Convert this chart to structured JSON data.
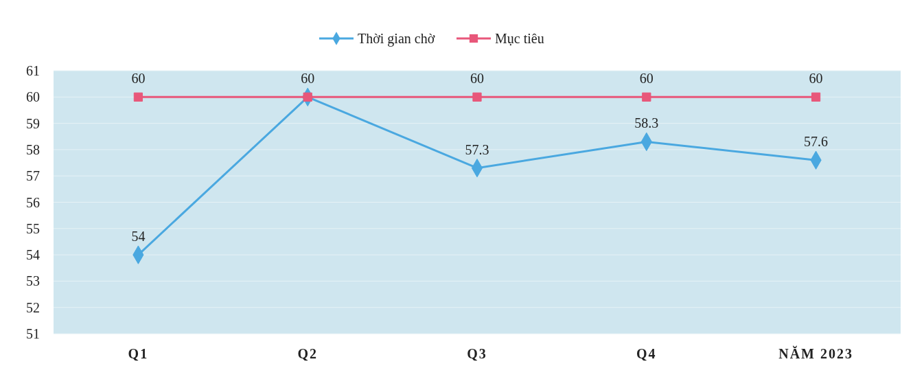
{
  "chart_data": {
    "type": "line",
    "categories": [
      "Q1",
      "Q2",
      "Q3",
      "Q4",
      "NĂM 2023"
    ],
    "series": [
      {
        "name": "Thời gian chờ",
        "color": "#4aa8e0",
        "marker": "diamond",
        "values": [
          54,
          60,
          57.3,
          58.3,
          57.6
        ],
        "value_labels": [
          "54",
          null,
          "57.3",
          "58.3",
          "57.6"
        ]
      },
      {
        "name": "Mục tiêu",
        "color": "#e8577a",
        "marker": "square",
        "values": [
          60,
          60,
          60,
          60,
          60
        ],
        "value_labels": [
          "60",
          "60",
          "60",
          "60",
          "60"
        ]
      }
    ],
    "ylim": [
      51,
      61
    ],
    "yticks": [
      51,
      52,
      53,
      54,
      55,
      56,
      57,
      58,
      59,
      60,
      61
    ],
    "grid": "y",
    "legend": "top"
  }
}
